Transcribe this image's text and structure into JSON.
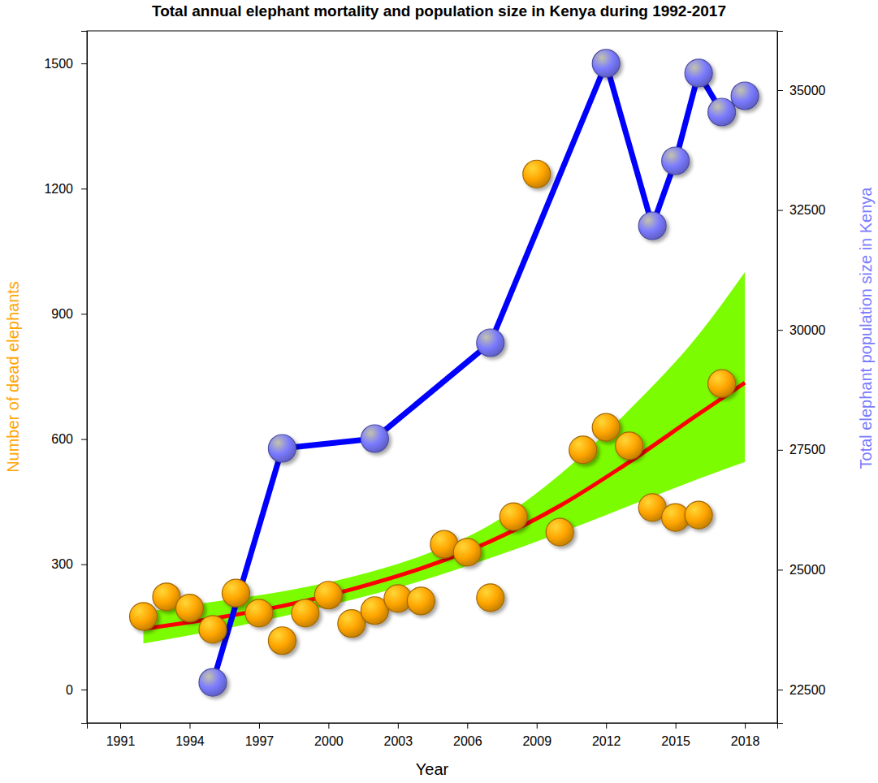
{
  "chart_data": {
    "type": "combo",
    "title": "Total annual elephant mortality and population size in Kenya during 1992-2017",
    "x_label": "Year",
    "y_label": "Number of dead elephants",
    "y2_label": "Total elephant population size in Kenya",
    "xlim": [
      1989.56,
      2019.4
    ],
    "xticks": [
      1991,
      1994,
      1997,
      2000,
      2003,
      2006,
      2009,
      2012,
      2015,
      2018
    ],
    "ylim": [
      -80,
      1578
    ],
    "yticks": [
      0,
      300,
      600,
      900,
      1200,
      1500
    ],
    "y2lim": [
      21806,
      36236
    ],
    "y2ticks": [
      22500,
      25000,
      27500,
      30000,
      32500,
      35000
    ],
    "series": [
      {
        "type": "area",
        "color": "#7cfc00",
        "x": [
          1992,
          1995,
          1998,
          2001,
          2004,
          2007,
          2010,
          2013,
          2016,
          2018
        ],
        "values": [
          185,
          210,
          235,
          270,
          320,
          395,
          515,
          670,
          850,
          1000
        ],
        "lower": [
          110,
          140,
          175,
          215,
          260,
          315,
          375,
          440,
          505,
          545
        ]
      },
      {
        "type": "line",
        "color": "#ff0000",
        "line_style": "solid",
        "x": [
          1992,
          1995,
          1998,
          2001,
          2004,
          2007,
          2010,
          2013,
          2016,
          2018
        ],
        "values": [
          145,
          170,
          200,
          240,
          290,
          355,
          440,
          545,
          660,
          735
        ]
      },
      {
        "type": "line",
        "axis": "y2",
        "color": "#0000ff",
        "line_style": "solid",
        "marker": "circle",
        "x": [
          1995,
          1998,
          2002,
          2007,
          2012,
          2014,
          2015,
          2016,
          2017,
          2018
        ],
        "values": [
          22652,
          27531,
          27734,
          29732,
          35559,
          32171,
          33526,
          35356,
          34542,
          34881
        ]
      },
      {
        "type": "scatter",
        "color": "#ffa500",
        "marker": "circle",
        "x": [
          1992,
          1993,
          1994,
          1995,
          1996,
          1997,
          1998,
          1999,
          2000,
          2001,
          2002,
          2003,
          2004,
          2005,
          2006,
          2007,
          2008,
          2009,
          2010,
          2011,
          2012,
          2013,
          2014,
          2015,
          2016,
          2017
        ],
        "values": [
          175,
          222,
          195,
          144,
          231,
          183,
          117,
          183,
          226,
          158,
          189,
          218,
          212,
          348,
          329,
          220,
          414,
          1235,
          377,
          574,
          628,
          584,
          436,
          412,
          418,
          733
        ]
      }
    ]
  }
}
